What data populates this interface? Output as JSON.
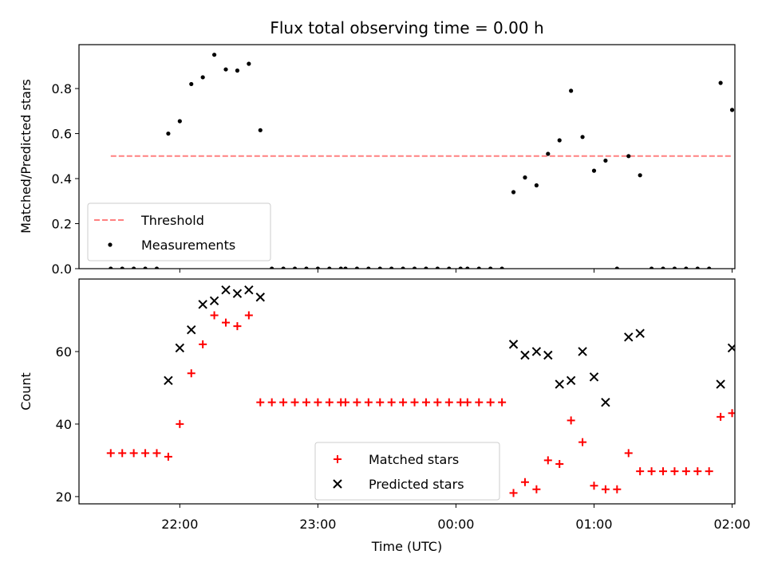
{
  "figure": {
    "title": "Flux total observing time = 0.00 h",
    "xlabel": "Time (UTC)",
    "xticks": [
      {
        "t": 1320,
        "label": "22:00"
      },
      {
        "t": 1380,
        "label": "23:00"
      },
      {
        "t": 1440,
        "label": "00:00"
      },
      {
        "t": 1500,
        "label": "01:00"
      },
      {
        "t": 1560,
        "label": "02:00"
      }
    ],
    "xlim": [
      1276.2,
      1561.2
    ]
  },
  "chart_data": [
    {
      "type": "scatter",
      "name": "ratio",
      "ylabel": "Matched/Predicted stars",
      "ylim": [
        0,
        0.995
      ],
      "yticks": [
        "0.0",
        "0.2",
        "0.4",
        "0.6",
        "0.8"
      ],
      "ytick_values": [
        0,
        0.2,
        0.4,
        0.6,
        0.8
      ],
      "threshold": {
        "label": "Threshold",
        "value": 0.5,
        "x_range": [
          1290,
          1568
        ],
        "color": "#ff8080"
      },
      "legend": {
        "position": "lower-left"
      },
      "series": [
        {
          "name": "Measurements",
          "color": "#000000",
          "points": [
            {
              "x": 1290,
              "y": 0
            },
            {
              "x": 1295,
              "y": 0
            },
            {
              "x": 1300,
              "y": 0
            },
            {
              "x": 1305,
              "y": 0
            },
            {
              "x": 1310,
              "y": 0
            },
            {
              "x": 1315,
              "y": 0.6
            },
            {
              "x": 1320,
              "y": 0.655
            },
            {
              "x": 1325,
              "y": 0.82
            },
            {
              "x": 1330,
              "y": 0.85
            },
            {
              "x": 1335,
              "y": 0.95
            },
            {
              "x": 1340,
              "y": 0.885
            },
            {
              "x": 1345,
              "y": 0.88
            },
            {
              "x": 1350,
              "y": 0.91
            },
            {
              "x": 1355,
              "y": 0.615
            },
            {
              "x": 1360,
              "y": 0
            },
            {
              "x": 1365,
              "y": 0
            },
            {
              "x": 1370,
              "y": 0
            },
            {
              "x": 1375,
              "y": 0
            },
            {
              "x": 1380,
              "y": 0
            },
            {
              "x": 1385,
              "y": 0
            },
            {
              "x": 1390,
              "y": 0
            },
            {
              "x": 1392,
              "y": 0
            },
            {
              "x": 1397,
              "y": 0
            },
            {
              "x": 1402,
              "y": 0
            },
            {
              "x": 1407,
              "y": 0
            },
            {
              "x": 1412,
              "y": 0
            },
            {
              "x": 1417,
              "y": 0
            },
            {
              "x": 1422,
              "y": 0
            },
            {
              "x": 1427,
              "y": 0
            },
            {
              "x": 1432,
              "y": 0
            },
            {
              "x": 1437,
              "y": 0
            },
            {
              "x": 1442,
              "y": 0
            },
            {
              "x": 1445,
              "y": 0
            },
            {
              "x": 1450,
              "y": 0
            },
            {
              "x": 1455,
              "y": 0
            },
            {
              "x": 1460,
              "y": 0
            },
            {
              "x": 1465,
              "y": 0.34
            },
            {
              "x": 1470,
              "y": 0.405
            },
            {
              "x": 1475,
              "y": 0.37
            },
            {
              "x": 1480,
              "y": 0.51
            },
            {
              "x": 1485,
              "y": 0.57
            },
            {
              "x": 1490,
              "y": 0.79
            },
            {
              "x": 1495,
              "y": 0.585
            },
            {
              "x": 1500,
              "y": 0.435
            },
            {
              "x": 1505,
              "y": 0.48
            },
            {
              "x": 1510,
              "y": 0
            },
            {
              "x": 1515,
              "y": 0.5
            },
            {
              "x": 1520,
              "y": 0.415
            },
            {
              "x": 1525,
              "y": 0
            },
            {
              "x": 1530,
              "y": 0
            },
            {
              "x": 1535,
              "y": 0
            },
            {
              "x": 1540,
              "y": 0
            },
            {
              "x": 1545,
              "y": 0
            },
            {
              "x": 1550,
              "y": 0
            },
            {
              "x": 1555,
              "y": 0.825
            },
            {
              "x": 1560,
              "y": 0.705
            }
          ]
        }
      ]
    },
    {
      "type": "scatter",
      "name": "counts",
      "ylabel": "Count",
      "ylim": [
        18,
        80
      ],
      "yticks": [
        "20",
        "40",
        "60"
      ],
      "ytick_values": [
        20,
        40,
        60
      ],
      "legend": {
        "position": "lower-center"
      },
      "series": [
        {
          "name": "Matched stars",
          "marker": "plus",
          "color": "#ff0000",
          "points": [
            {
              "x": 1290,
              "y": 32
            },
            {
              "x": 1295,
              "y": 32
            },
            {
              "x": 1300,
              "y": 32
            },
            {
              "x": 1305,
              "y": 32
            },
            {
              "x": 1310,
              "y": 32
            },
            {
              "x": 1315,
              "y": 31
            },
            {
              "x": 1320,
              "y": 40
            },
            {
              "x": 1325,
              "y": 54
            },
            {
              "x": 1330,
              "y": 62
            },
            {
              "x": 1335,
              "y": 70
            },
            {
              "x": 1340,
              "y": 68
            },
            {
              "x": 1345,
              "y": 67
            },
            {
              "x": 1350,
              "y": 70
            },
            {
              "x": 1355,
              "y": 46
            },
            {
              "x": 1360,
              "y": 46
            },
            {
              "x": 1365,
              "y": 46
            },
            {
              "x": 1370,
              "y": 46
            },
            {
              "x": 1375,
              "y": 46
            },
            {
              "x": 1380,
              "y": 46
            },
            {
              "x": 1385,
              "y": 46
            },
            {
              "x": 1390,
              "y": 46
            },
            {
              "x": 1392,
              "y": 46
            },
            {
              "x": 1397,
              "y": 46
            },
            {
              "x": 1402,
              "y": 46
            },
            {
              "x": 1407,
              "y": 46
            },
            {
              "x": 1412,
              "y": 46
            },
            {
              "x": 1417,
              "y": 46
            },
            {
              "x": 1422,
              "y": 46
            },
            {
              "x": 1427,
              "y": 46
            },
            {
              "x": 1432,
              "y": 46
            },
            {
              "x": 1437,
              "y": 46
            },
            {
              "x": 1442,
              "y": 46
            },
            {
              "x": 1445,
              "y": 46
            },
            {
              "x": 1450,
              "y": 46
            },
            {
              "x": 1455,
              "y": 46
            },
            {
              "x": 1460,
              "y": 46
            },
            {
              "x": 1465,
              "y": 21
            },
            {
              "x": 1470,
              "y": 24
            },
            {
              "x": 1475,
              "y": 22
            },
            {
              "x": 1480,
              "y": 30
            },
            {
              "x": 1485,
              "y": 29
            },
            {
              "x": 1490,
              "y": 41
            },
            {
              "x": 1495,
              "y": 35
            },
            {
              "x": 1500,
              "y": 23
            },
            {
              "x": 1505,
              "y": 22
            },
            {
              "x": 1510,
              "y": 22
            },
            {
              "x": 1515,
              "y": 32
            },
            {
              "x": 1520,
              "y": 27
            },
            {
              "x": 1525,
              "y": 27
            },
            {
              "x": 1530,
              "y": 27
            },
            {
              "x": 1535,
              "y": 27
            },
            {
              "x": 1540,
              "y": 27
            },
            {
              "x": 1545,
              "y": 27
            },
            {
              "x": 1550,
              "y": 27
            },
            {
              "x": 1555,
              "y": 42
            },
            {
              "x": 1560,
              "y": 43
            }
          ]
        },
        {
          "name": "Predicted stars",
          "marker": "x",
          "color": "#000000",
          "points": [
            {
              "x": 1315,
              "y": 52
            },
            {
              "x": 1320,
              "y": 61
            },
            {
              "x": 1325,
              "y": 66
            },
            {
              "x": 1330,
              "y": 73
            },
            {
              "x": 1335,
              "y": 74
            },
            {
              "x": 1340,
              "y": 77
            },
            {
              "x": 1345,
              "y": 76
            },
            {
              "x": 1350,
              "y": 77
            },
            {
              "x": 1355,
              "y": 75
            },
            {
              "x": 1465,
              "y": 62
            },
            {
              "x": 1470,
              "y": 59
            },
            {
              "x": 1475,
              "y": 60
            },
            {
              "x": 1480,
              "y": 59
            },
            {
              "x": 1485,
              "y": 51
            },
            {
              "x": 1490,
              "y": 52
            },
            {
              "x": 1495,
              "y": 60
            },
            {
              "x": 1500,
              "y": 53
            },
            {
              "x": 1505,
              "y": 46
            },
            {
              "x": 1515,
              "y": 64
            },
            {
              "x": 1520,
              "y": 65
            },
            {
              "x": 1555,
              "y": 51
            },
            {
              "x": 1560,
              "y": 61
            }
          ]
        }
      ]
    }
  ]
}
